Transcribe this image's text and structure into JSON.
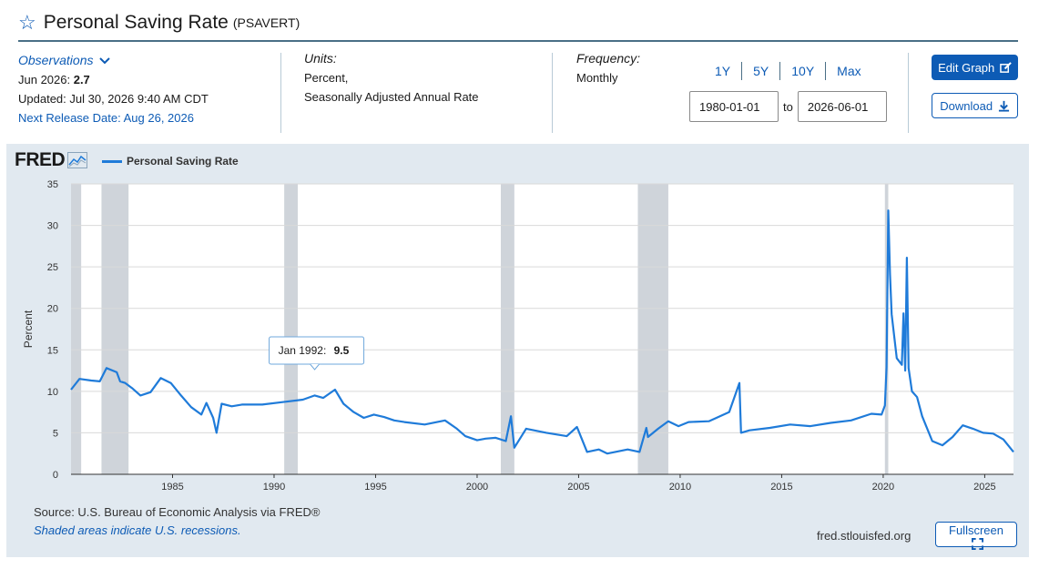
{
  "header": {
    "title": "Personal Saving Rate",
    "series_code": "(PSAVERT)"
  },
  "observations": {
    "heading": "Observations",
    "date_label": "Jun 2026: ",
    "value": "2.7",
    "updated": "Updated: Jul 30, 2026 9:40 AM CDT",
    "next_release": "Next Release Date: Aug 26, 2026"
  },
  "units": {
    "heading": "Units:",
    "line1": "Percent,",
    "line2": "Seasonally Adjusted Annual Rate"
  },
  "frequency": {
    "heading": "Frequency:",
    "value": "Monthly"
  },
  "range_buttons": [
    "1Y",
    "5Y",
    "10Y",
    "Max"
  ],
  "date_range": {
    "start": "1980-01-01",
    "to_label": "to",
    "end": "2026-06-01"
  },
  "buttons": {
    "edit_graph": "Edit Graph",
    "download": "Download",
    "fullscreen": "Fullscreen"
  },
  "logo": {
    "text": "FRED"
  },
  "footer": {
    "source": "Source: U.S. Bureau of Economic Analysis via FRED®",
    "shading_note": "Shaded areas indicate U.S. recessions.",
    "site": "fred.stlouisfed.org"
  },
  "colors": {
    "line": "#1f7bd9",
    "accent": "#0d5bb5",
    "recession": "#cfd4da",
    "panel": "#e1e9f0"
  },
  "icons": {
    "star": "star-icon",
    "chevron": "chevron-down-icon",
    "fred_chart": "fred-chart-icon",
    "edit": "edit-icon",
    "download": "download-icon",
    "fullscreen": "fullscreen-icon"
  },
  "chart_data": {
    "type": "line",
    "ylabel": "Percent",
    "ylim": [
      0,
      35
    ],
    "xlim": [
      "1980-01",
      "2026-06"
    ],
    "y_ticks": [
      0,
      5,
      10,
      15,
      20,
      25,
      30,
      35
    ],
    "x_ticks": [
      "1985",
      "1990",
      "1995",
      "2000",
      "2005",
      "2010",
      "2015",
      "2020",
      "2025"
    ],
    "grid": true,
    "legend_position": "top-left",
    "series": [
      {
        "name": "Personal Saving Rate",
        "x": [
          "1980-01",
          "1980-06",
          "1981-01",
          "1981-06",
          "1981-10",
          "1982-04",
          "1982-06",
          "1982-09",
          "1983-01",
          "1983-06",
          "1983-12",
          "1984-06",
          "1984-12",
          "1985-06",
          "1985-12",
          "1986-06",
          "1986-09",
          "1987-01",
          "1987-03",
          "1987-06",
          "1987-12",
          "1988-06",
          "1989-06",
          "1990-06",
          "1991-06",
          "1992-01",
          "1992-06",
          "1993-01",
          "1993-06",
          "1993-12",
          "1994-06",
          "1994-12",
          "1995-06",
          "1995-12",
          "1996-06",
          "1997-06",
          "1998-06",
          "1999-01",
          "1999-06",
          "2000-01",
          "2000-06",
          "2000-12",
          "2001-06",
          "2001-09",
          "2001-11",
          "2002-06",
          "2003-06",
          "2004-06",
          "2004-12",
          "2005-06",
          "2006-01",
          "2006-06",
          "2007-06",
          "2008-01",
          "2008-05",
          "2008-06",
          "2008-12",
          "2009-06",
          "2009-12",
          "2010-06",
          "2011-06",
          "2012-06",
          "2012-12",
          "2013-01",
          "2013-06",
          "2014-06",
          "2015-06",
          "2016-06",
          "2017-06",
          "2018-06",
          "2019-06",
          "2019-12",
          "2020-02",
          "2020-03",
          "2020-04",
          "2020-05",
          "2020-06",
          "2020-09",
          "2020-12",
          "2021-01",
          "2021-02",
          "2021-03",
          "2021-04",
          "2021-06",
          "2021-09",
          "2021-12",
          "2022-06",
          "2022-12",
          "2023-06",
          "2023-12",
          "2024-06",
          "2024-12",
          "2025-06",
          "2025-12",
          "2026-06"
        ],
        "values": [
          10.2,
          11.5,
          11.3,
          11.2,
          12.8,
          12.3,
          11.2,
          11.0,
          10.4,
          9.5,
          9.9,
          11.6,
          11.0,
          9.5,
          8.1,
          7.2,
          8.6,
          6.8,
          5.0,
          8.5,
          8.2,
          8.4,
          8.4,
          8.7,
          9.0,
          9.5,
          9.2,
          10.2,
          8.5,
          7.5,
          6.8,
          7.2,
          6.9,
          6.5,
          6.3,
          6.0,
          6.5,
          5.5,
          4.6,
          4.1,
          4.3,
          4.4,
          4.0,
          7.0,
          3.2,
          5.5,
          5.0,
          4.6,
          5.7,
          2.7,
          3.0,
          2.5,
          3.0,
          2.7,
          5.6,
          4.5,
          5.5,
          6.4,
          5.8,
          6.3,
          6.4,
          7.5,
          11.0,
          5.0,
          5.3,
          5.6,
          6.0,
          5.8,
          6.2,
          6.5,
          7.3,
          7.2,
          8.3,
          12.9,
          31.8,
          24.1,
          19.3,
          14.0,
          13.2,
          19.4,
          12.5,
          26.1,
          12.8,
          10.0,
          9.3,
          7.0,
          4.0,
          3.5,
          4.5,
          5.9,
          5.5,
          5.0,
          4.9,
          4.2,
          2.7
        ]
      }
    ],
    "recessions": [
      [
        "1980-01",
        "1980-07"
      ],
      [
        "1981-07",
        "1982-11"
      ],
      [
        "1990-07",
        "1991-03"
      ],
      [
        "2001-03",
        "2001-11"
      ],
      [
        "2007-12",
        "2009-06"
      ],
      [
        "2020-02",
        "2020-04"
      ]
    ],
    "tooltip": {
      "label": "Jan 1992:",
      "value": "9.5"
    }
  }
}
